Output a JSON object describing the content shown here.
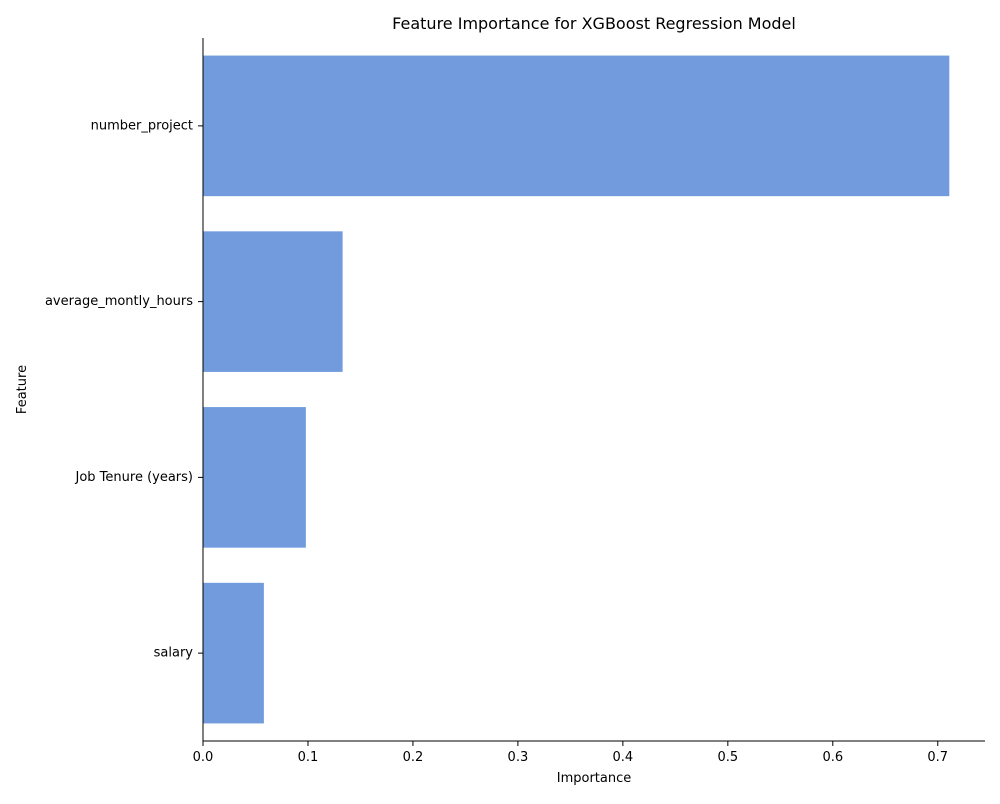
{
  "chart_data": {
    "type": "bar",
    "orientation": "horizontal",
    "title": "Feature Importance for XGBoost Regression Model",
    "xlabel": "Importance",
    "ylabel": "Feature",
    "categories": [
      "number_project",
      "average_montly_hours",
      "Job Tenure (years)",
      "salary"
    ],
    "values": [
      0.711,
      0.133,
      0.098,
      0.058
    ],
    "xlim": [
      0,
      0.745
    ],
    "xticks": [
      0.0,
      0.1,
      0.2,
      0.3,
      0.4,
      0.5,
      0.6,
      0.7
    ],
    "xtick_labels": [
      "0.0",
      "0.1",
      "0.2",
      "0.3",
      "0.4",
      "0.5",
      "0.6",
      "0.7"
    ],
    "grid": false,
    "bar_color": "#729bde"
  }
}
